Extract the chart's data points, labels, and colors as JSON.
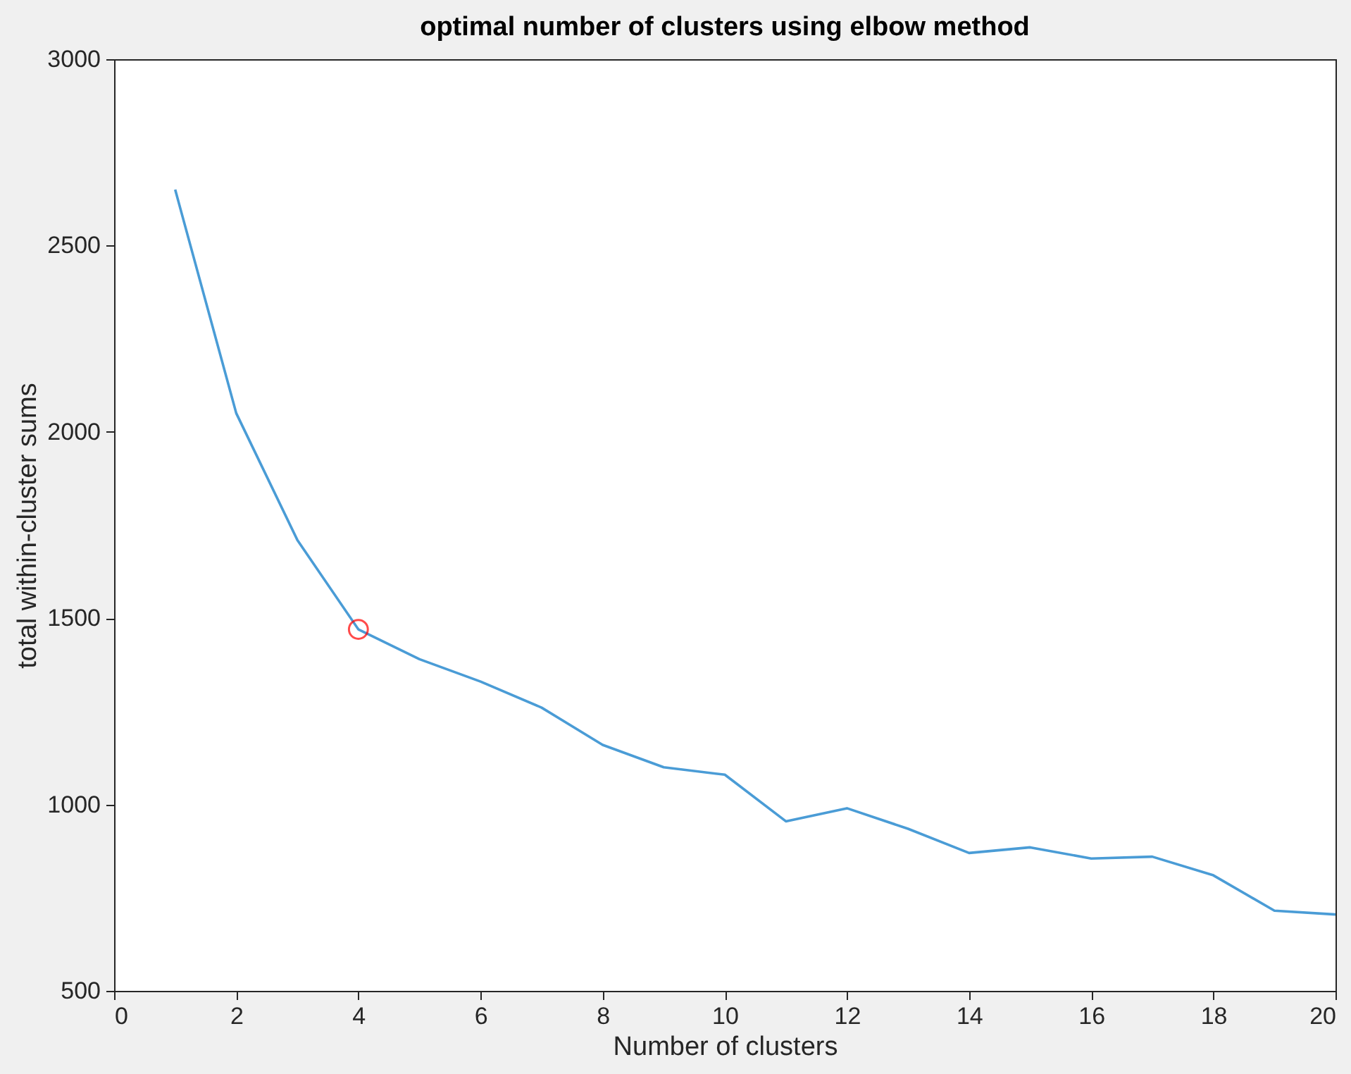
{
  "chart_data": {
    "type": "line",
    "title": "optimal number of clusters using elbow method",
    "xlabel": "Number of clusters",
    "ylabel": "total within-cluster sums",
    "xlim": [
      0,
      20
    ],
    "xticks": [
      0,
      2,
      4,
      6,
      8,
      10,
      12,
      14,
      16,
      18,
      20
    ],
    "ylim": [
      500,
      3000
    ],
    "yticks": [
      500,
      1000,
      1500,
      2000,
      2500,
      3000
    ],
    "grid": false,
    "series": [
      {
        "color": "#4a9cd6",
        "marker": "none",
        "x": [
          1,
          2,
          3,
          4,
          5,
          6,
          7,
          8,
          9,
          10,
          11,
          12,
          13,
          14,
          15,
          16,
          17,
          18,
          19,
          20
        ],
        "values": [
          2650,
          2050,
          1710,
          1470,
          1390,
          1330,
          1260,
          1160,
          1100,
          1080,
          955,
          990,
          935,
          870,
          885,
          855,
          860,
          810,
          715,
          705
        ]
      },
      {
        "type": "scatter",
        "color": "#ff0000",
        "marker": "circle",
        "x": [
          4
        ],
        "values": [
          1470
        ]
      }
    ]
  }
}
